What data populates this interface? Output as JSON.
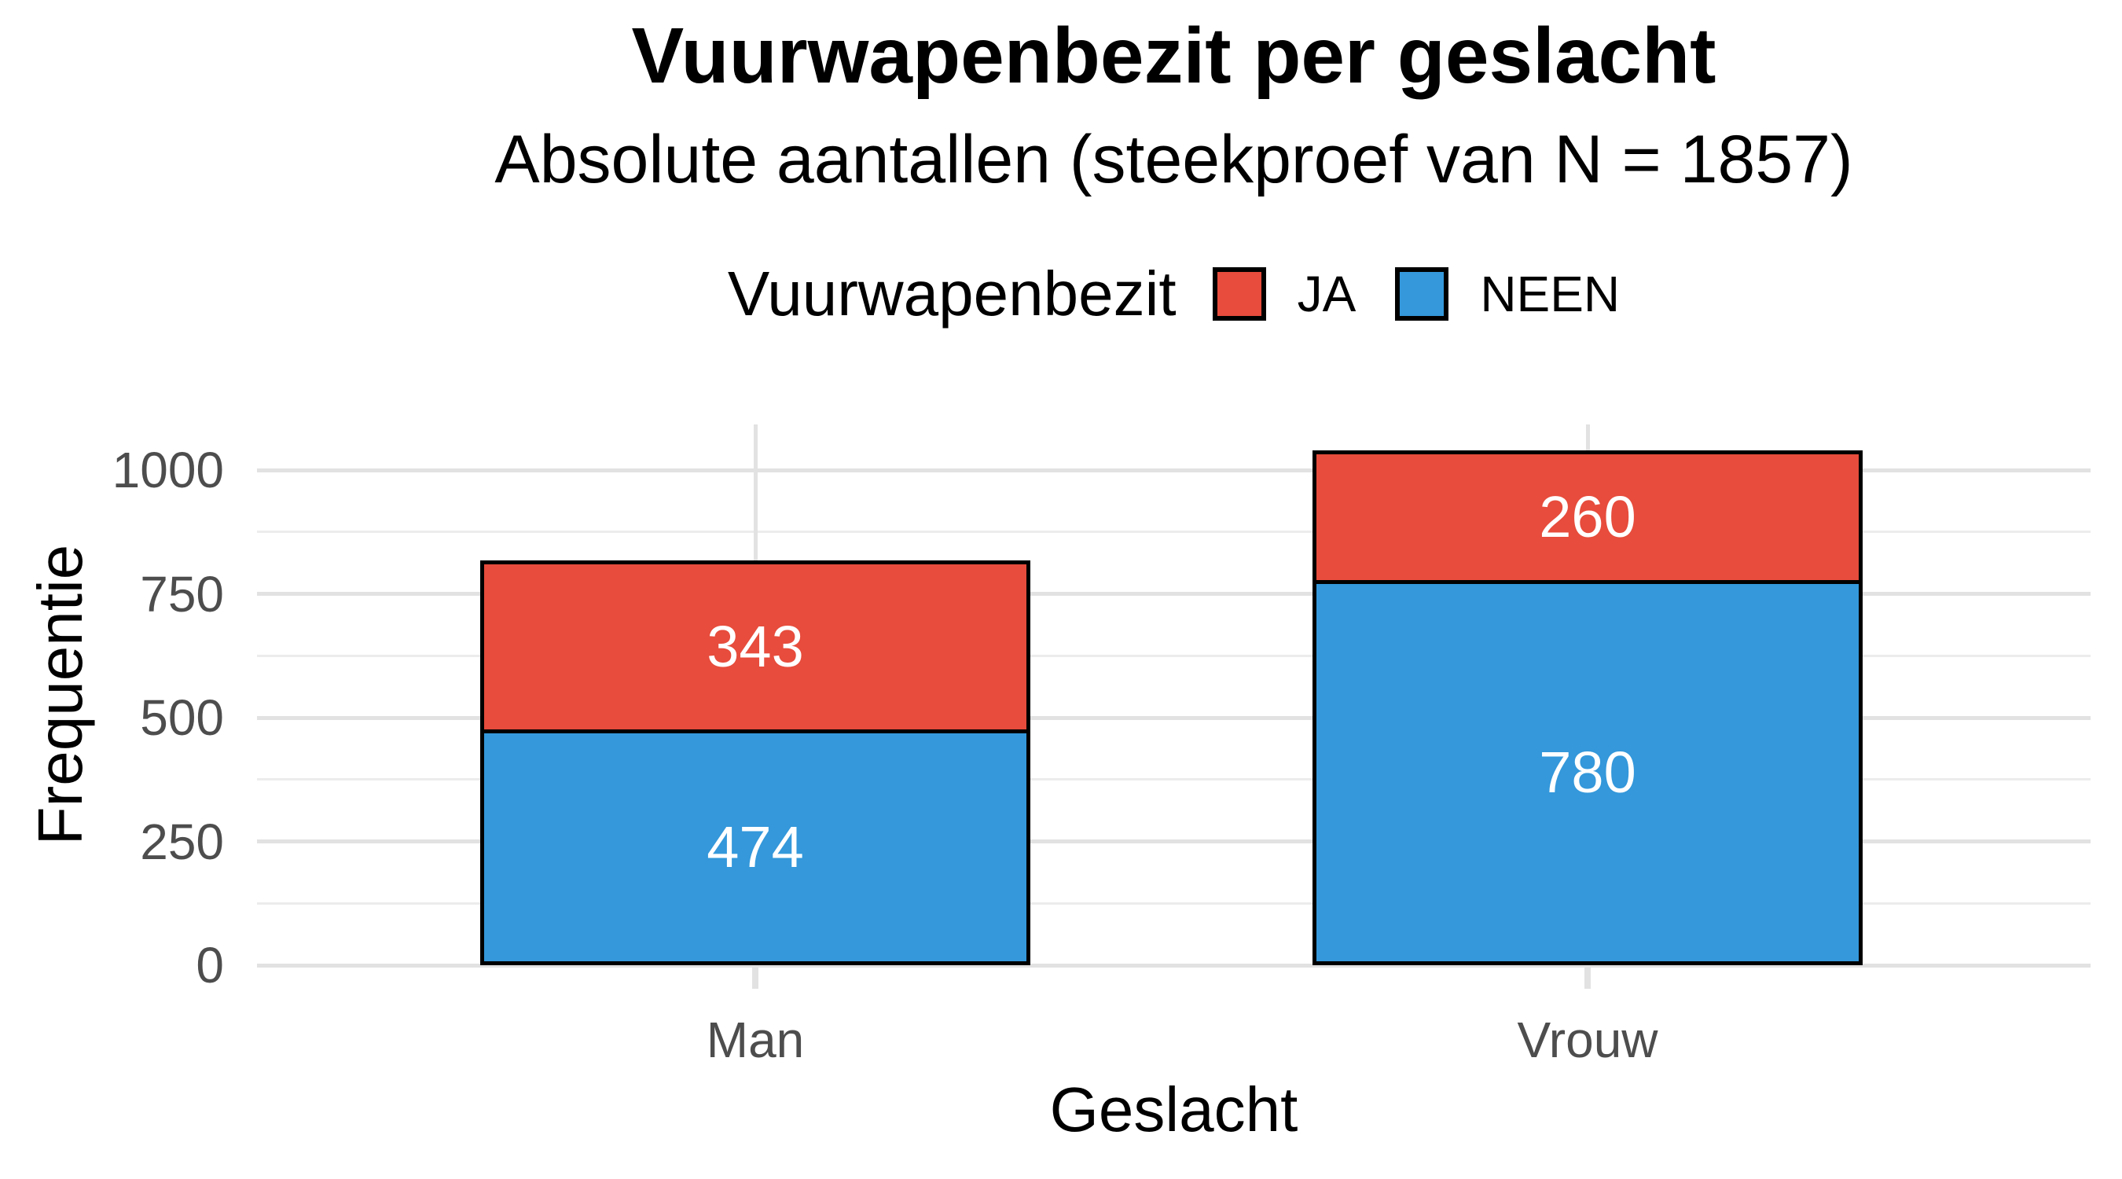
{
  "header": {
    "title": "Vuurwapenbezit per geslacht",
    "subtitle": "Absolute aantallen (steekproef van N = 1857)"
  },
  "legend": {
    "title": "Vuurwapenbezit",
    "items": [
      {
        "label": "JA",
        "color": "#e74c3c"
      },
      {
        "label": "NEEN",
        "color": "#3498db"
      }
    ]
  },
  "axes": {
    "y_title": "Frequentie",
    "x_title": "Geslacht",
    "y_tick_labels": [
      "0",
      "250",
      "500",
      "750",
      "1000"
    ],
    "x_tick_labels": [
      "Man",
      "Vrouw"
    ]
  },
  "chart_data": {
    "type": "bar",
    "stacked": true,
    "title": "Vuurwapenbezit per geslacht",
    "subtitle": "Absolute aantallen (steekproef van N = 1857)",
    "sample_size": 1857,
    "xlabel": "Geslacht",
    "ylabel": "Frequentie",
    "categories": [
      "Man",
      "Vrouw"
    ],
    "series": [
      {
        "name": "JA",
        "color": "#e74c3c",
        "values": [
          343,
          260
        ]
      },
      {
        "name": "NEEN",
        "color": "#3498db",
        "values": [
          474,
          780
        ]
      }
    ],
    "stack_totals": [
      817,
      1040
    ],
    "bar_value_labels": [
      [
        "343",
        "260"
      ],
      [
        "474",
        "780"
      ]
    ],
    "yticks": [
      0,
      250,
      500,
      750,
      1000
    ],
    "minor_yticks": [
      125,
      375,
      625,
      875
    ],
    "ylim": [
      0,
      1092
    ],
    "grid": {
      "horizontal": "major+minor",
      "vertical": "major-at-categories"
    },
    "legend_position": "top-center"
  },
  "colors": {
    "ja": "#e74c3c",
    "neen": "#3498db",
    "bar_border": "#000000",
    "grid_major": "#e2e2e2",
    "grid_minor": "#ececec",
    "tick_text": "#4d4d4d",
    "title_text": "#000000",
    "bar_label_text": "#ffffff",
    "background": "#ffffff"
  }
}
